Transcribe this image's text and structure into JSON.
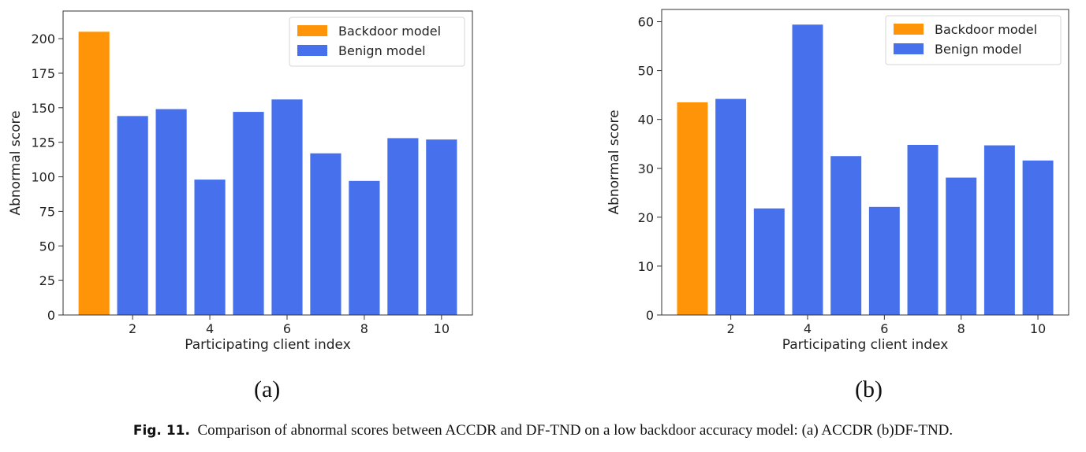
{
  "figure": {
    "panel_labels": [
      "(a)",
      "(b)"
    ],
    "caption_prefix": "Fig. 11.",
    "caption_text": "Comparison of abnormal scores between ACCDR and DF-TND on a low backdoor accuracy model: (a) ACCDR (b)DF-TND."
  },
  "colors": {
    "backdoor": "#FF9408",
    "benign": "#4670EC",
    "axis": "#333333"
  },
  "chart_data": [
    {
      "type": "bar",
      "title": "",
      "xlabel": "Participating client index",
      "ylabel": "Abnormal score",
      "ylim": [
        0,
        220
      ],
      "yticks": [
        0,
        25,
        50,
        75,
        100,
        125,
        150,
        175,
        200
      ],
      "xticks": [
        2,
        4,
        6,
        8,
        10
      ],
      "xlim": [
        0.2,
        10.8
      ],
      "legend": {
        "position": "top-right",
        "entries": [
          "Backdoor model",
          "Benign model"
        ]
      },
      "grid": false,
      "series": [
        {
          "name": "Backdoor model",
          "x": [
            1
          ],
          "values": [
            205
          ]
        },
        {
          "name": "Benign model",
          "x": [
            2,
            3,
            4,
            5,
            6,
            7,
            8,
            9,
            10
          ],
          "values": [
            144,
            149,
            98,
            147,
            156,
            117,
            97,
            128,
            127
          ]
        }
      ]
    },
    {
      "type": "bar",
      "title": "",
      "xlabel": "Participating client index",
      "ylabel": "Abnormal score",
      "ylim": [
        0,
        62.5
      ],
      "yticks": [
        0,
        10,
        20,
        30,
        40,
        50,
        60
      ],
      "xticks": [
        2,
        4,
        6,
        8,
        10
      ],
      "xlim": [
        0.2,
        10.8
      ],
      "legend": {
        "position": "top-right",
        "entries": [
          "Backdoor model",
          "Benign model"
        ]
      },
      "grid": false,
      "series": [
        {
          "name": "Backdoor model",
          "x": [
            1
          ],
          "values": [
            43.5
          ]
        },
        {
          "name": "Benign model",
          "x": [
            2,
            3,
            4,
            5,
            6,
            7,
            8,
            9,
            10
          ],
          "values": [
            44.2,
            21.8,
            59.4,
            32.5,
            22.1,
            34.8,
            28.1,
            34.7,
            31.6
          ]
        }
      ]
    }
  ]
}
